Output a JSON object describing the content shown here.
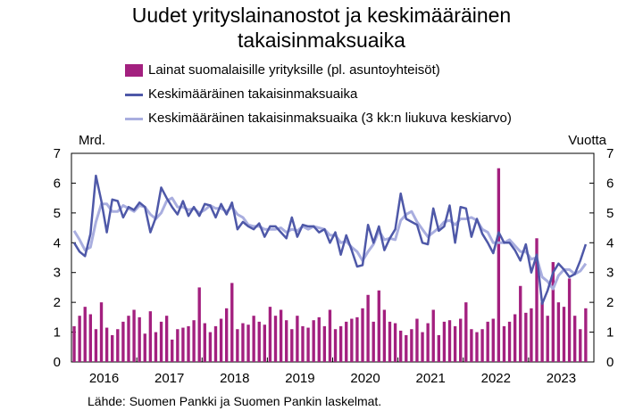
{
  "chart_data": {
    "type": "bar+line",
    "title": [
      "Uudet yrityslainanostot ja keskimääräinen",
      "takaisinmaksuaika"
    ],
    "y_left_label": "Mrd.",
    "y_right_label": "Vuotta",
    "ylim": [
      0,
      7
    ],
    "yticks": [
      "0",
      "1",
      "2",
      "3",
      "4",
      "5",
      "6",
      "7"
    ],
    "x_start": "2016-01",
    "x_end": "2023-12",
    "xticks": [
      "2016",
      "2017",
      "2018",
      "2019",
      "2020",
      "2021",
      "2022",
      "2023"
    ],
    "grid": false,
    "series": [
      {
        "name": "Lainat suomalaisille yrityksille (pl. asuntoyhteisöt)",
        "kind": "bar",
        "color": "#a3207f",
        "values": [
          1.2,
          1.55,
          1.85,
          1.6,
          1.1,
          2.0,
          1.15,
          0.9,
          1.1,
          1.35,
          1.55,
          1.75,
          1.5,
          0.95,
          1.7,
          1.0,
          1.35,
          1.55,
          0.75,
          1.1,
          1.15,
          1.2,
          1.4,
          2.5,
          1.3,
          1.0,
          1.2,
          1.45,
          1.8,
          2.65,
          1.1,
          1.3,
          1.25,
          1.55,
          1.35,
          1.25,
          1.85,
          1.55,
          1.75,
          1.4,
          1.1,
          1.55,
          1.2,
          1.15,
          1.4,
          1.5,
          1.2,
          1.75,
          1.1,
          1.2,
          1.35,
          1.45,
          1.5,
          1.8,
          2.25,
          1.35,
          2.4,
          1.75,
          1.35,
          1.3,
          1.05,
          0.9,
          1.1,
          1.45,
          1.0,
          1.3,
          1.75,
          0.9,
          1.35,
          1.4,
          1.2,
          1.45,
          2.0,
          1.1,
          1.0,
          1.1,
          1.35,
          1.45,
          6.5,
          1.2,
          1.35,
          1.6,
          2.55,
          1.65,
          1.8,
          4.15,
          2.0,
          1.55,
          3.35,
          2.0,
          1.85,
          2.8,
          1.55,
          1.1,
          1.8
        ]
      },
      {
        "name": "Keskimääräinen takaisinmaksuaika",
        "kind": "line",
        "color": "#4e58a8",
        "values": [
          4.0,
          3.7,
          3.55,
          4.3,
          6.25,
          5.4,
          4.35,
          5.45,
          5.4,
          4.85,
          5.2,
          5.1,
          5.35,
          5.2,
          4.35,
          4.85,
          5.85,
          5.5,
          5.2,
          4.95,
          5.4,
          4.9,
          5.2,
          4.9,
          5.3,
          5.25,
          4.85,
          5.3,
          4.95,
          5.35,
          4.45,
          4.7,
          4.55,
          4.45,
          4.65,
          4.2,
          4.55,
          4.55,
          4.35,
          4.15,
          4.85,
          4.2,
          4.6,
          4.55,
          4.55,
          4.35,
          4.45,
          4.0,
          4.35,
          3.6,
          4.25,
          3.75,
          3.2,
          3.25,
          4.6,
          4.0,
          4.55,
          3.75,
          4.15,
          4.45,
          5.65,
          4.8,
          4.7,
          4.6,
          4.0,
          3.95,
          5.15,
          4.4,
          4.55,
          5.25,
          4.0,
          5.2,
          5.15,
          4.2,
          4.8,
          4.3,
          4.0,
          3.65,
          4.35,
          4.0,
          4.0,
          3.75,
          3.4,
          3.95,
          3.0,
          3.6,
          1.95,
          2.4,
          3.0,
          3.3,
          3.1,
          2.85,
          2.95,
          3.4,
          3.95
        ]
      },
      {
        "name": "Keskimääräinen takaisinmaksuaika (3 kk:n liukuva keskiarvo)",
        "kind": "line",
        "color": "#a9aedf",
        "values": [
          4.4,
          4.1,
          3.75,
          3.85,
          4.7,
          5.3,
          5.3,
          5.05,
          5.05,
          5.25,
          5.15,
          5.05,
          5.25,
          5.2,
          4.95,
          4.8,
          5.0,
          5.4,
          5.5,
          5.2,
          5.2,
          5.1,
          5.15,
          5.0,
          5.1,
          5.25,
          5.15,
          5.15,
          5.05,
          5.2,
          4.95,
          4.85,
          4.6,
          4.55,
          4.55,
          4.45,
          4.45,
          4.45,
          4.5,
          4.35,
          4.45,
          4.4,
          4.55,
          4.45,
          4.55,
          4.5,
          4.45,
          4.25,
          4.25,
          4.0,
          4.05,
          3.85,
          3.7,
          3.4,
          3.7,
          3.95,
          4.4,
          4.1,
          4.15,
          4.1,
          4.75,
          4.95,
          5.05,
          4.7,
          4.45,
          4.2,
          4.35,
          4.5,
          4.7,
          4.75,
          4.6,
          4.8,
          4.8,
          4.85,
          4.75,
          4.45,
          4.35,
          4.0,
          4.0,
          4.0,
          4.1,
          3.9,
          3.7,
          3.7,
          3.45,
          3.5,
          2.85,
          2.7,
          2.45,
          2.9,
          3.1,
          3.1,
          2.95,
          3.05,
          3.3
        ]
      }
    ]
  },
  "source": "Lähde: Suomen Pankki ja Suomen Pankin laskelmat."
}
